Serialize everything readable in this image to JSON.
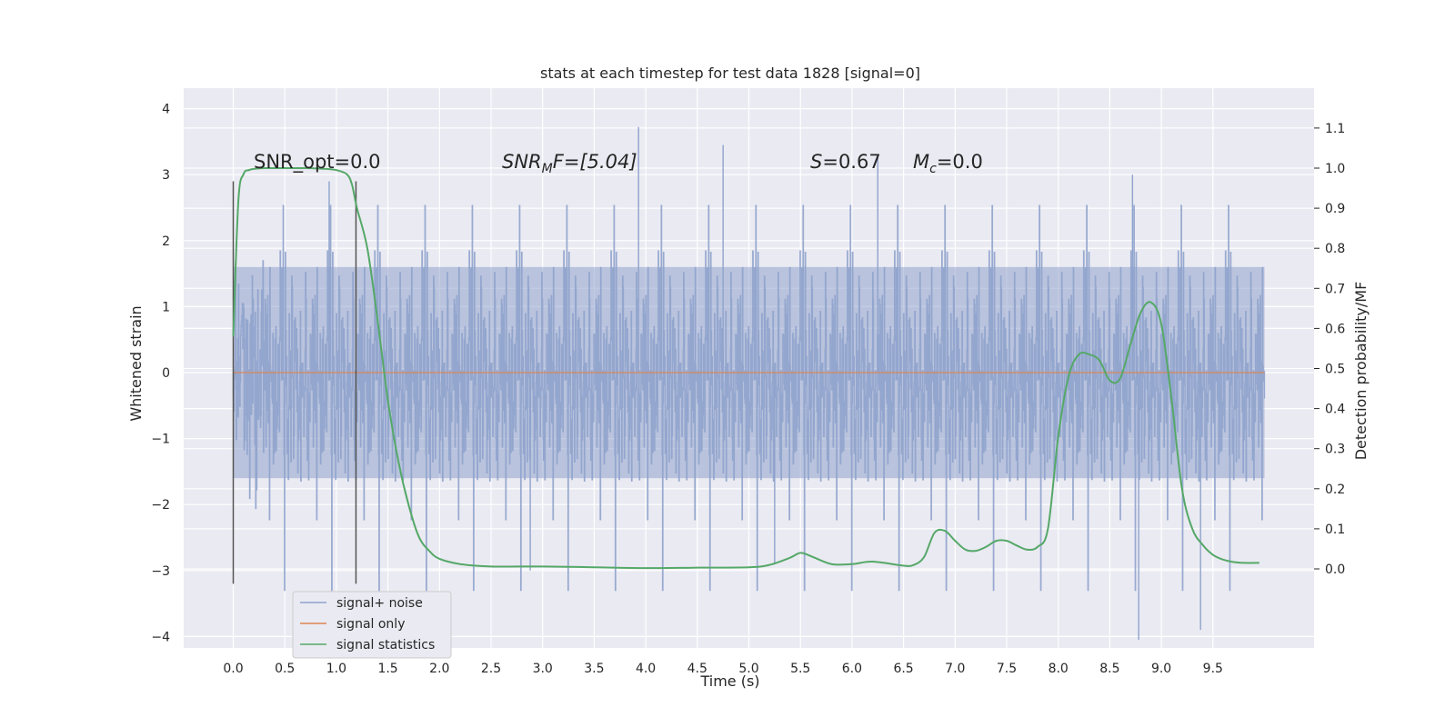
{
  "chart_data": {
    "type": "line",
    "title": "stats at each timestep for test data 1828 [signal=0]",
    "xlabel": "Time (s)",
    "ylabel": "Whitened strain",
    "y2label": "Detection probability/MF",
    "xlim": [
      -0.5,
      10.5
    ],
    "ylim": [
      -4.4,
      4.1
    ],
    "y2lim": [
      -0.2,
      1.2
    ],
    "x_ticks": [
      "0.0",
      "0.5",
      "1.0",
      "1.5",
      "2.0",
      "2.5",
      "3.0",
      "3.5",
      "4.0",
      "4.5",
      "5.0",
      "5.5",
      "6.0",
      "6.5",
      "7.0",
      "7.5",
      "8.0",
      "8.5",
      "9.0",
      "9.5"
    ],
    "y_ticks": [
      "4",
      "3",
      "2",
      "1",
      "0",
      "−1",
      "−2",
      "−3",
      "−4"
    ],
    "y2_ticks": [
      "1.1",
      "1.0",
      "0.9",
      "0.8",
      "0.7",
      "0.6",
      "0.5",
      "0.4",
      "0.3",
      "0.2",
      "0.1",
      "0.0"
    ],
    "grid": true,
    "legend_position": "lower-left",
    "colors": {
      "noise": "#8fa3cc",
      "signal": "#dd8452",
      "stats": "#55a868",
      "marker": "#555555",
      "background": "#eaeaf2"
    },
    "annotations": {
      "snr_opt": "SNR_opt=0.0",
      "snr_mf_base": "SNR",
      "snr_mf_sub": "M",
      "snr_mf_rest": "F=[5.04]",
      "s_stat": "S",
      "s_value": "=0.67",
      "mc_base": "M",
      "mc_sub": "c",
      "mc_value": "=0.0"
    },
    "markers_x": [
      0.0,
      1.19
    ],
    "series": [
      {
        "name": "signal+ noise",
        "x_range": [
          0.0,
          10.0
        ],
        "envelope_typical": 1.6,
        "peak_min": -4.05,
        "peak_max": 3.72
      },
      {
        "name": "signal only",
        "x": [
          0.0,
          10.0
        ],
        "values": [
          0.0,
          0.0
        ]
      },
      {
        "name": "signal statistics",
        "x": [
          0.0,
          0.05,
          0.1,
          0.15,
          0.2,
          0.3,
          0.5,
          0.7,
          0.9,
          1.0,
          1.1,
          1.15,
          1.2,
          1.3,
          1.4,
          1.5,
          1.6,
          1.7,
          1.8,
          1.9,
          2.0,
          2.2,
          2.5,
          3.0,
          3.5,
          4.0,
          4.5,
          5.0,
          5.2,
          5.4,
          5.5,
          5.6,
          5.8,
          6.0,
          6.2,
          6.5,
          6.6,
          6.7,
          6.8,
          6.9,
          7.0,
          7.1,
          7.2,
          7.3,
          7.4,
          7.5,
          7.6,
          7.7,
          7.8,
          7.9,
          8.0,
          8.1,
          8.2,
          8.3,
          8.4,
          8.5,
          8.6,
          8.7,
          8.8,
          8.9,
          9.0,
          9.1,
          9.2,
          9.3,
          9.4,
          9.5,
          9.6,
          9.7,
          9.8,
          9.95
        ],
        "values": [
          0.58,
          0.92,
          0.985,
          0.995,
          0.998,
          1.0,
          1.0,
          1.0,
          0.998,
          0.995,
          0.985,
          0.96,
          0.9,
          0.8,
          0.62,
          0.42,
          0.27,
          0.16,
          0.08,
          0.045,
          0.025,
          0.012,
          0.006,
          0.006,
          0.004,
          0.002,
          0.003,
          0.004,
          0.01,
          0.028,
          0.04,
          0.032,
          0.012,
          0.012,
          0.018,
          0.008,
          0.01,
          0.03,
          0.09,
          0.095,
          0.07,
          0.048,
          0.045,
          0.055,
          0.07,
          0.07,
          0.058,
          0.048,
          0.055,
          0.1,
          0.33,
          0.48,
          0.535,
          0.535,
          0.52,
          0.47,
          0.475,
          0.56,
          0.64,
          0.665,
          0.61,
          0.42,
          0.2,
          0.1,
          0.06,
          0.035,
          0.023,
          0.017,
          0.015,
          0.015
        ]
      }
    ]
  }
}
